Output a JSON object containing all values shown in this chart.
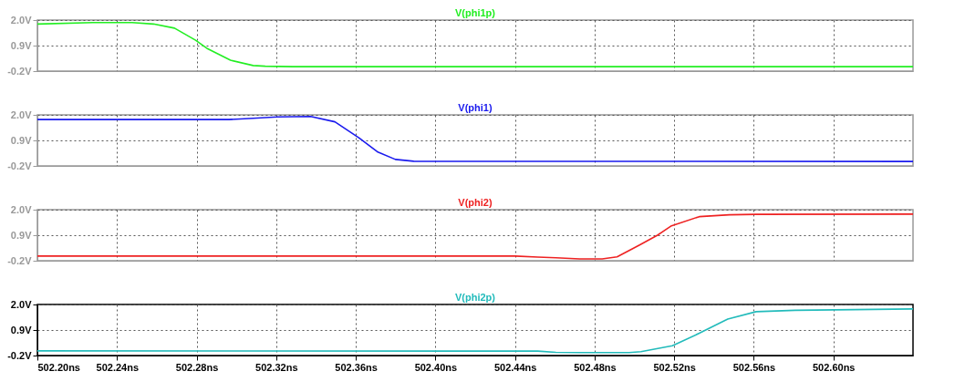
{
  "chart_data": [
    {
      "type": "line",
      "x": [
        502.2,
        502.2278,
        502.2476,
        502.2583,
        502.2689,
        502.2795,
        502.2856,
        502.297,
        502.3084,
        502.3145,
        502.3282,
        502.64
      ],
      "series": [
        {
          "name": "V(phi1p)",
          "color": "#22ee22",
          "values": [
            1.83,
            1.89,
            1.89,
            1.83,
            1.65,
            1.13,
            0.76,
            0.27,
            0.04,
            0.01,
            -0.01,
            -0.01
          ]
        }
      ],
      "xlim": [
        502.2,
        502.64
      ],
      "ylim": [
        -0.2,
        2.0
      ],
      "xticks": [
        {
          "value": 502.2,
          "label": null
        },
        {
          "value": 502.24,
          "label": null
        },
        {
          "value": 502.28,
          "label": null
        },
        {
          "value": 502.32,
          "label": null
        },
        {
          "value": 502.36,
          "label": null
        },
        {
          "value": 502.4,
          "label": null
        },
        {
          "value": 502.44,
          "label": null
        },
        {
          "value": 502.48,
          "label": null
        },
        {
          "value": 502.52,
          "label": null
        },
        {
          "value": 502.56,
          "label": null
        },
        {
          "value": 502.6,
          "label": null
        }
      ],
      "yticks": [
        {
          "value": -0.2,
          "label": "-0.2V"
        },
        {
          "value": 0.9,
          "label": "0.9V"
        },
        {
          "value": 2.0,
          "label": "2.0V"
        }
      ],
      "grid": true,
      "tick_labels": "y"
    },
    {
      "type": "line",
      "x": [
        502.2,
        502.2963,
        502.3084,
        502.3206,
        502.3373,
        502.3495,
        502.3617,
        502.3708,
        502.3799,
        502.3891,
        502.64
      ],
      "series": [
        {
          "name": "V(phi1)",
          "color": "#1a1aee",
          "values": [
            1.8,
            1.8,
            1.85,
            1.91,
            1.93,
            1.7,
            1.0,
            0.41,
            0.08,
            0.0,
            -0.01
          ]
        }
      ],
      "xlim": [
        502.2,
        502.64
      ],
      "ylim": [
        -0.2,
        2.0
      ],
      "xticks": [
        {
          "value": 502.2,
          "label": null
        },
        {
          "value": 502.24,
          "label": null
        },
        {
          "value": 502.28,
          "label": null
        },
        {
          "value": 502.32,
          "label": null
        },
        {
          "value": 502.36,
          "label": null
        },
        {
          "value": 502.4,
          "label": null
        },
        {
          "value": 502.44,
          "label": null
        },
        {
          "value": 502.48,
          "label": null
        },
        {
          "value": 502.52,
          "label": null
        },
        {
          "value": 502.56,
          "label": null
        },
        {
          "value": 502.6,
          "label": null
        }
      ],
      "yticks": [
        {
          "value": -0.2,
          "label": "-0.2V"
        },
        {
          "value": 0.9,
          "label": "0.9V"
        },
        {
          "value": 2.0,
          "label": "2.0V"
        }
      ],
      "grid": true,
      "tick_labels": "y"
    },
    {
      "type": "line",
      "x": [
        502.2,
        502.44,
        502.4514,
        502.4605,
        502.4725,
        502.4838,
        502.4913,
        502.5026,
        502.5116,
        502.5183,
        502.5326,
        502.5477,
        502.5612,
        502.64
      ],
      "series": [
        {
          "name": "V(phi2)",
          "color": "#ee2222",
          "values": [
            0.0,
            0.0,
            -0.04,
            -0.07,
            -0.12,
            -0.12,
            -0.03,
            0.48,
            0.9,
            1.29,
            1.7,
            1.78,
            1.8,
            1.81
          ]
        }
      ],
      "xlim": [
        502.2,
        502.64
      ],
      "ylim": [
        -0.2,
        2.0
      ],
      "xticks": [
        {
          "value": 502.2,
          "label": null
        },
        {
          "value": 502.24,
          "label": null
        },
        {
          "value": 502.28,
          "label": null
        },
        {
          "value": 502.32,
          "label": null
        },
        {
          "value": 502.36,
          "label": null
        },
        {
          "value": 502.4,
          "label": null
        },
        {
          "value": 502.44,
          "label": null
        },
        {
          "value": 502.48,
          "label": null
        },
        {
          "value": 502.52,
          "label": null
        },
        {
          "value": 502.56,
          "label": null
        },
        {
          "value": 502.6,
          "label": null
        }
      ],
      "yticks": [
        {
          "value": -0.2,
          "label": "-0.2V"
        },
        {
          "value": 0.9,
          "label": "0.9V"
        },
        {
          "value": 2.0,
          "label": "2.0V"
        }
      ],
      "grid": true,
      "tick_labels": "y"
    },
    {
      "type": "line",
      "x": [
        502.2,
        502.4514,
        502.4605,
        502.4725,
        502.4974,
        502.5033,
        502.5191,
        502.5326,
        502.5469,
        502.5612,
        502.5808,
        502.6108,
        502.64
      ],
      "series": [
        {
          "name": "V(phi2p)",
          "color": "#22bbbb",
          "values": [
            0.0,
            -0.01,
            -0.06,
            -0.07,
            -0.07,
            -0.03,
            0.22,
            0.76,
            1.37,
            1.69,
            1.75,
            1.78,
            1.81
          ]
        }
      ],
      "xlim": [
        502.2,
        502.64
      ],
      "ylim": [
        -0.2,
        2.0
      ],
      "xticks": [
        {
          "value": 502.2,
          "label": "502.20ns"
        },
        {
          "value": 502.24,
          "label": "502.24ns"
        },
        {
          "value": 502.28,
          "label": "502.28ns"
        },
        {
          "value": 502.32,
          "label": "502.32ns"
        },
        {
          "value": 502.36,
          "label": "502.36ns"
        },
        {
          "value": 502.4,
          "label": "502.40ns"
        },
        {
          "value": 502.44,
          "label": "502.44ns"
        },
        {
          "value": 502.48,
          "label": "502.48ns"
        },
        {
          "value": 502.52,
          "label": "502.52ns"
        },
        {
          "value": 502.56,
          "label": "502.56ns"
        },
        {
          "value": 502.6,
          "label": "502.60ns"
        }
      ],
      "yticks": [
        {
          "value": -0.2,
          "label": "-0.2V"
        },
        {
          "value": 0.9,
          "label": "0.9V"
        },
        {
          "value": 2.0,
          "label": "2.0V"
        }
      ],
      "grid": true
    }
  ]
}
